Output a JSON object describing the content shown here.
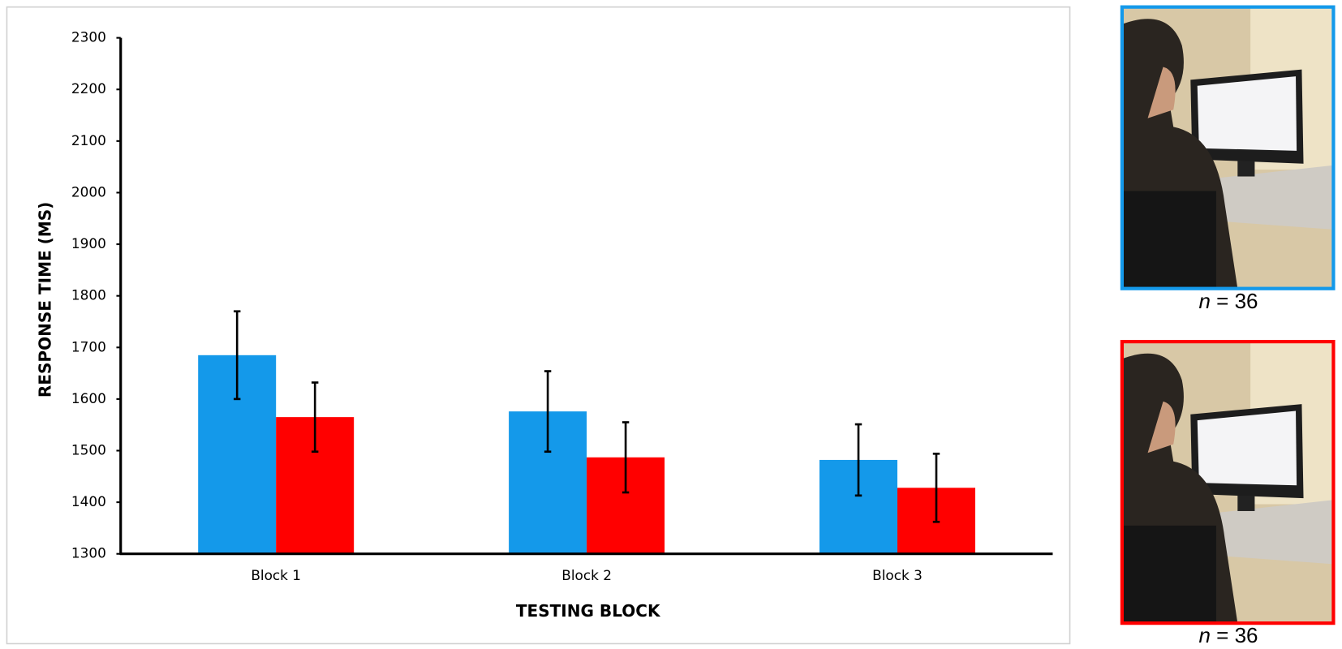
{
  "chart_data": {
    "type": "bar",
    "x_label": "TESTING BLOCK",
    "y_label": "RESPONSE TIME (MS)",
    "categories": [
      "Block 1",
      "Block 2",
      "Block 3"
    ],
    "series": [
      {
        "color": "#1499ea",
        "values": [
          1685,
          1576,
          1482
        ],
        "errors": [
          85,
          78,
          69
        ]
      },
      {
        "color": "#ff0000",
        "values": [
          1565,
          1487,
          1428
        ],
        "errors": [
          67,
          68,
          66
        ]
      }
    ],
    "ylim": [
      1300,
      2300
    ],
    "yticks": [
      1300,
      1400,
      1500,
      1600,
      1700,
      1800,
      1900,
      2000,
      2100,
      2200,
      2300
    ],
    "grid": false
  },
  "panels": [
    {
      "caption": "n = 36",
      "color": "#1499ea"
    },
    {
      "caption": "n = 36",
      "color": "#ff0000"
    }
  ]
}
